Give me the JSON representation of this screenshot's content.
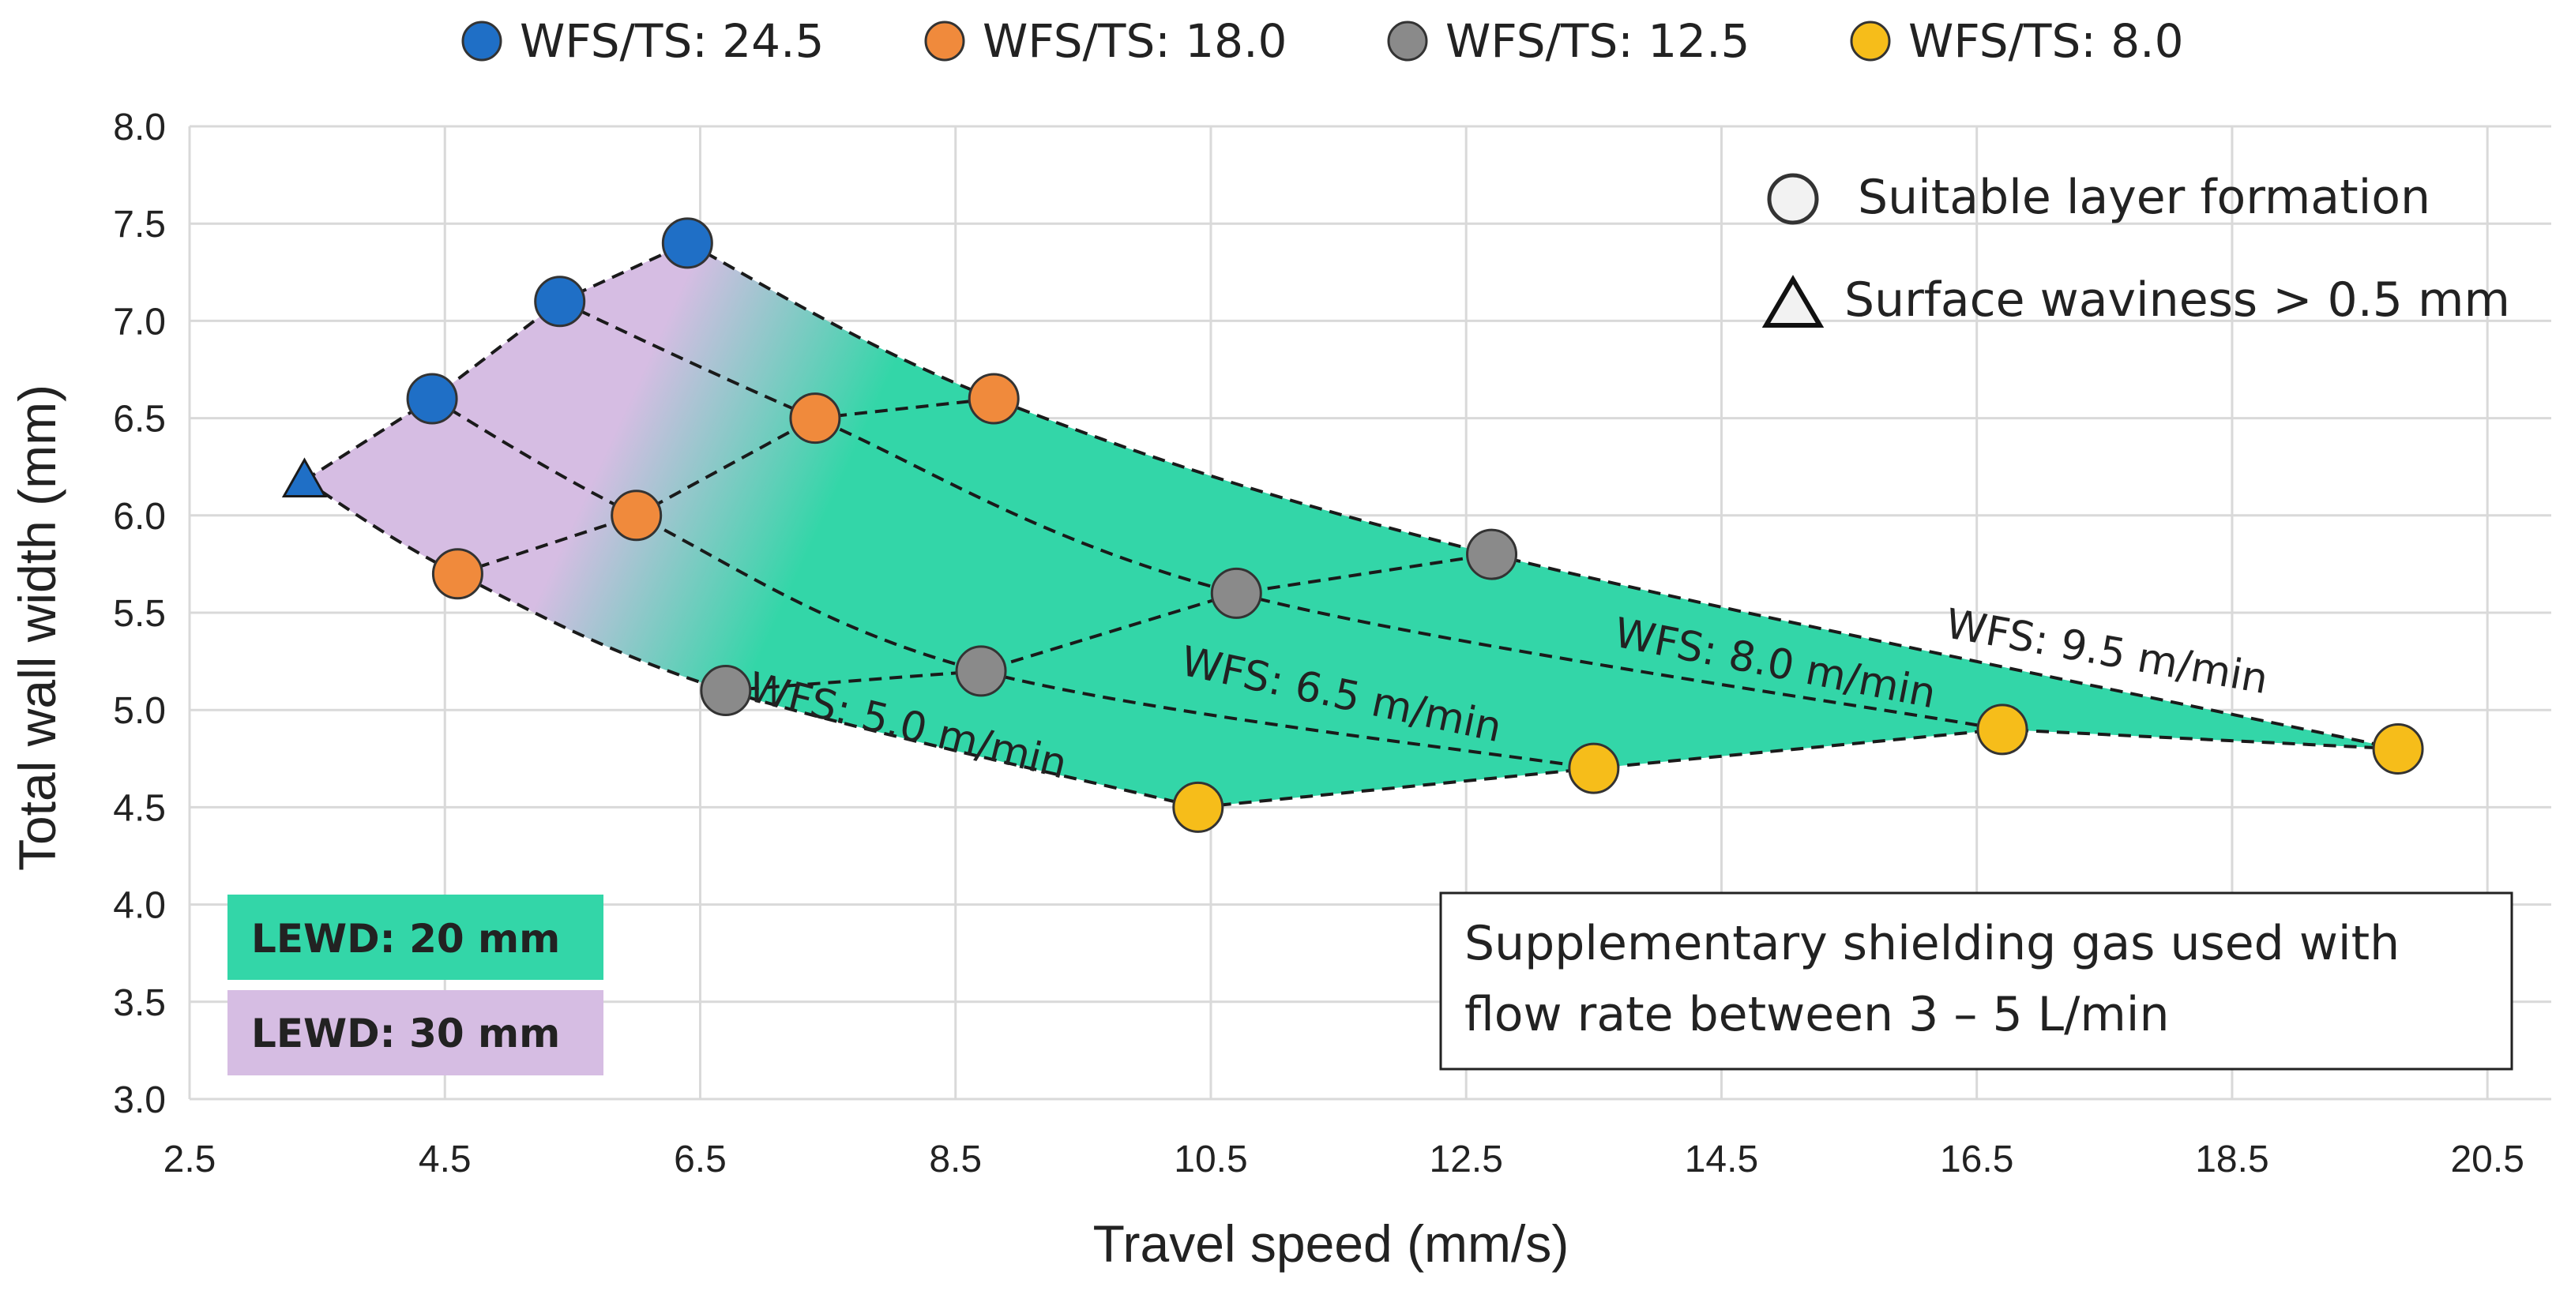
{
  "chart_data": {
    "type": "scatter",
    "xlabel": "Travel speed (mm/s)",
    "ylabel": "Total wall width (mm)",
    "xlim": [
      2.5,
      21.0
    ],
    "ylim": [
      3.0,
      8.0
    ],
    "xticks": [
      2.5,
      4.5,
      6.5,
      8.5,
      10.5,
      12.5,
      14.5,
      16.5,
      18.5,
      20.5
    ],
    "yticks": [
      3.0,
      3.5,
      4.0,
      4.5,
      5.0,
      5.5,
      6.0,
      6.5,
      7.0,
      7.5,
      8.0
    ],
    "xtick_labels": [
      "2.5",
      "4.5",
      "6.5",
      "8.5",
      "10.5",
      "12.5",
      "14.5",
      "16.5",
      "18.5",
      "20.5"
    ],
    "ytick_labels": [
      "3.0",
      "3.5",
      "4.0",
      "4.5",
      "5.0",
      "5.5",
      "6.0",
      "6.5",
      "7.0",
      "7.5",
      "8.0"
    ],
    "grid": true,
    "series": [
      {
        "name": "WFS/TS: 24.5",
        "color": "#1f6fc6",
        "points": [
          {
            "x": 3.4,
            "y": 6.18,
            "marker": "triangle"
          },
          {
            "x": 4.4,
            "y": 6.6,
            "marker": "circle"
          },
          {
            "x": 5.4,
            "y": 7.1,
            "marker": "circle"
          },
          {
            "x": 6.4,
            "y": 7.4,
            "marker": "circle"
          }
        ]
      },
      {
        "name": "WFS/TS: 18.0",
        "color": "#f08a3c",
        "points": [
          {
            "x": 4.6,
            "y": 5.7,
            "marker": "circle"
          },
          {
            "x": 6.0,
            "y": 6.0,
            "marker": "circle"
          },
          {
            "x": 7.4,
            "y": 6.5,
            "marker": "circle"
          },
          {
            "x": 8.8,
            "y": 6.6,
            "marker": "circle"
          }
        ]
      },
      {
        "name": "WFS/TS: 12.5",
        "color": "#8a8a8a",
        "points": [
          {
            "x": 6.7,
            "y": 5.1,
            "marker": "circle"
          },
          {
            "x": 8.7,
            "y": 5.2,
            "marker": "circle"
          },
          {
            "x": 10.7,
            "y": 5.6,
            "marker": "circle"
          },
          {
            "x": 12.7,
            "y": 5.8,
            "marker": "circle"
          }
        ]
      },
      {
        "name": "WFS/TS: 8.0",
        "color": "#f6bd1a",
        "points": [
          {
            "x": 10.4,
            "y": 4.5,
            "marker": "circle"
          },
          {
            "x": 13.5,
            "y": 4.7,
            "marker": "circle"
          },
          {
            "x": 16.7,
            "y": 4.9,
            "marker": "circle"
          },
          {
            "x": 19.8,
            "y": 4.8,
            "marker": "circle"
          }
        ]
      }
    ],
    "wfs_curves": [
      {
        "label": "WFS: 5.0 m/min",
        "points": [
          [
            3.4,
            6.18
          ],
          [
            4.6,
            5.7
          ],
          [
            6.7,
            5.1
          ],
          [
            10.4,
            4.5
          ]
        ],
        "label_at": [
          8.1,
          4.85
        ],
        "label_angle": 14
      },
      {
        "label": "WFS: 6.5 m/min",
        "points": [
          [
            4.4,
            6.6
          ],
          [
            6.0,
            6.0
          ],
          [
            8.7,
            5.2
          ],
          [
            13.5,
            4.7
          ]
        ],
        "label_at": [
          11.5,
          5.01
        ],
        "label_angle": 12
      },
      {
        "label": "WFS: 8.0 m/min",
        "points": [
          [
            5.4,
            7.1
          ],
          [
            7.4,
            6.5
          ],
          [
            10.7,
            5.6
          ],
          [
            16.7,
            4.9
          ]
        ],
        "label_at": [
          14.9,
          5.17
        ],
        "label_angle": 11
      },
      {
        "label": "WFS: 9.5 m/min",
        "points": [
          [
            6.4,
            7.4
          ],
          [
            8.8,
            6.6
          ],
          [
            12.7,
            5.8
          ],
          [
            19.8,
            4.8
          ]
        ],
        "label_at": [
          17.5,
          5.23
        ],
        "label_angle": 10
      }
    ],
    "legend": {
      "placement": "top",
      "marker_legend": [
        {
          "marker": "circle",
          "label": "Suitable layer formation"
        },
        {
          "marker": "triangle",
          "label": "Surface waviness > 0.5 mm"
        }
      ]
    },
    "regions": [
      {
        "label": "LEWD: 20 mm",
        "color": "#33d6a8"
      },
      {
        "label": "LEWD: 30 mm",
        "color": "#d6bde3"
      }
    ],
    "annotation": {
      "lines": [
        "Supplementary shielding gas used with",
        "flow rate between 3 – 5 L/min"
      ]
    }
  }
}
